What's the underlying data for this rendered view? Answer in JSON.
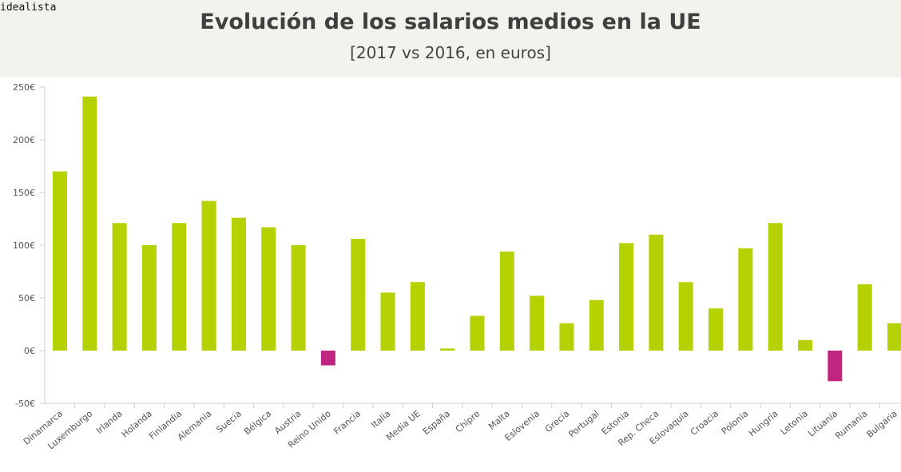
{
  "brand": "idealista",
  "chart_data": {
    "type": "bar",
    "title": "Evolución de los salarios medios en la UE",
    "subtitle": "[2017 vs 2016, en euros]",
    "xlabel": "",
    "ylabel": "",
    "ylim": [
      -50,
      250
    ],
    "yticks": [
      -50,
      0,
      50,
      100,
      150,
      200,
      250
    ],
    "ytick_labels": [
      "-50€",
      "0€",
      "50€",
      "100€",
      "150€",
      "200€",
      "250€"
    ],
    "grid": false,
    "colors": {
      "positive": "#b5d200",
      "negative": "#c0267f",
      "axis": "#cfcfc8"
    },
    "categories": [
      "Dinamarca",
      "Luxemburgo",
      "Irlanda",
      "Holanda",
      "Finlandia",
      "Alemania",
      "Suecia",
      "Bélgica",
      "Austria",
      "Reino Unido",
      "Francia",
      "Italia",
      "Media UE",
      "España",
      "Chipre",
      "Malta",
      "Eslovenia",
      "Grecia",
      "Portugal",
      "Estonia",
      "Rep. Checa",
      "Eslovaquia",
      "Croacia",
      "Polonia",
      "Hungría",
      "Letonia",
      "Lituania",
      "Rumanía",
      "Bulgaria"
    ],
    "values": [
      170,
      241,
      121,
      100,
      121,
      142,
      126,
      117,
      100,
      -14,
      106,
      55,
      65,
      2,
      33,
      94,
      52,
      26,
      48,
      102,
      110,
      65,
      40,
      97,
      121,
      10,
      -29,
      63,
      26
    ]
  }
}
